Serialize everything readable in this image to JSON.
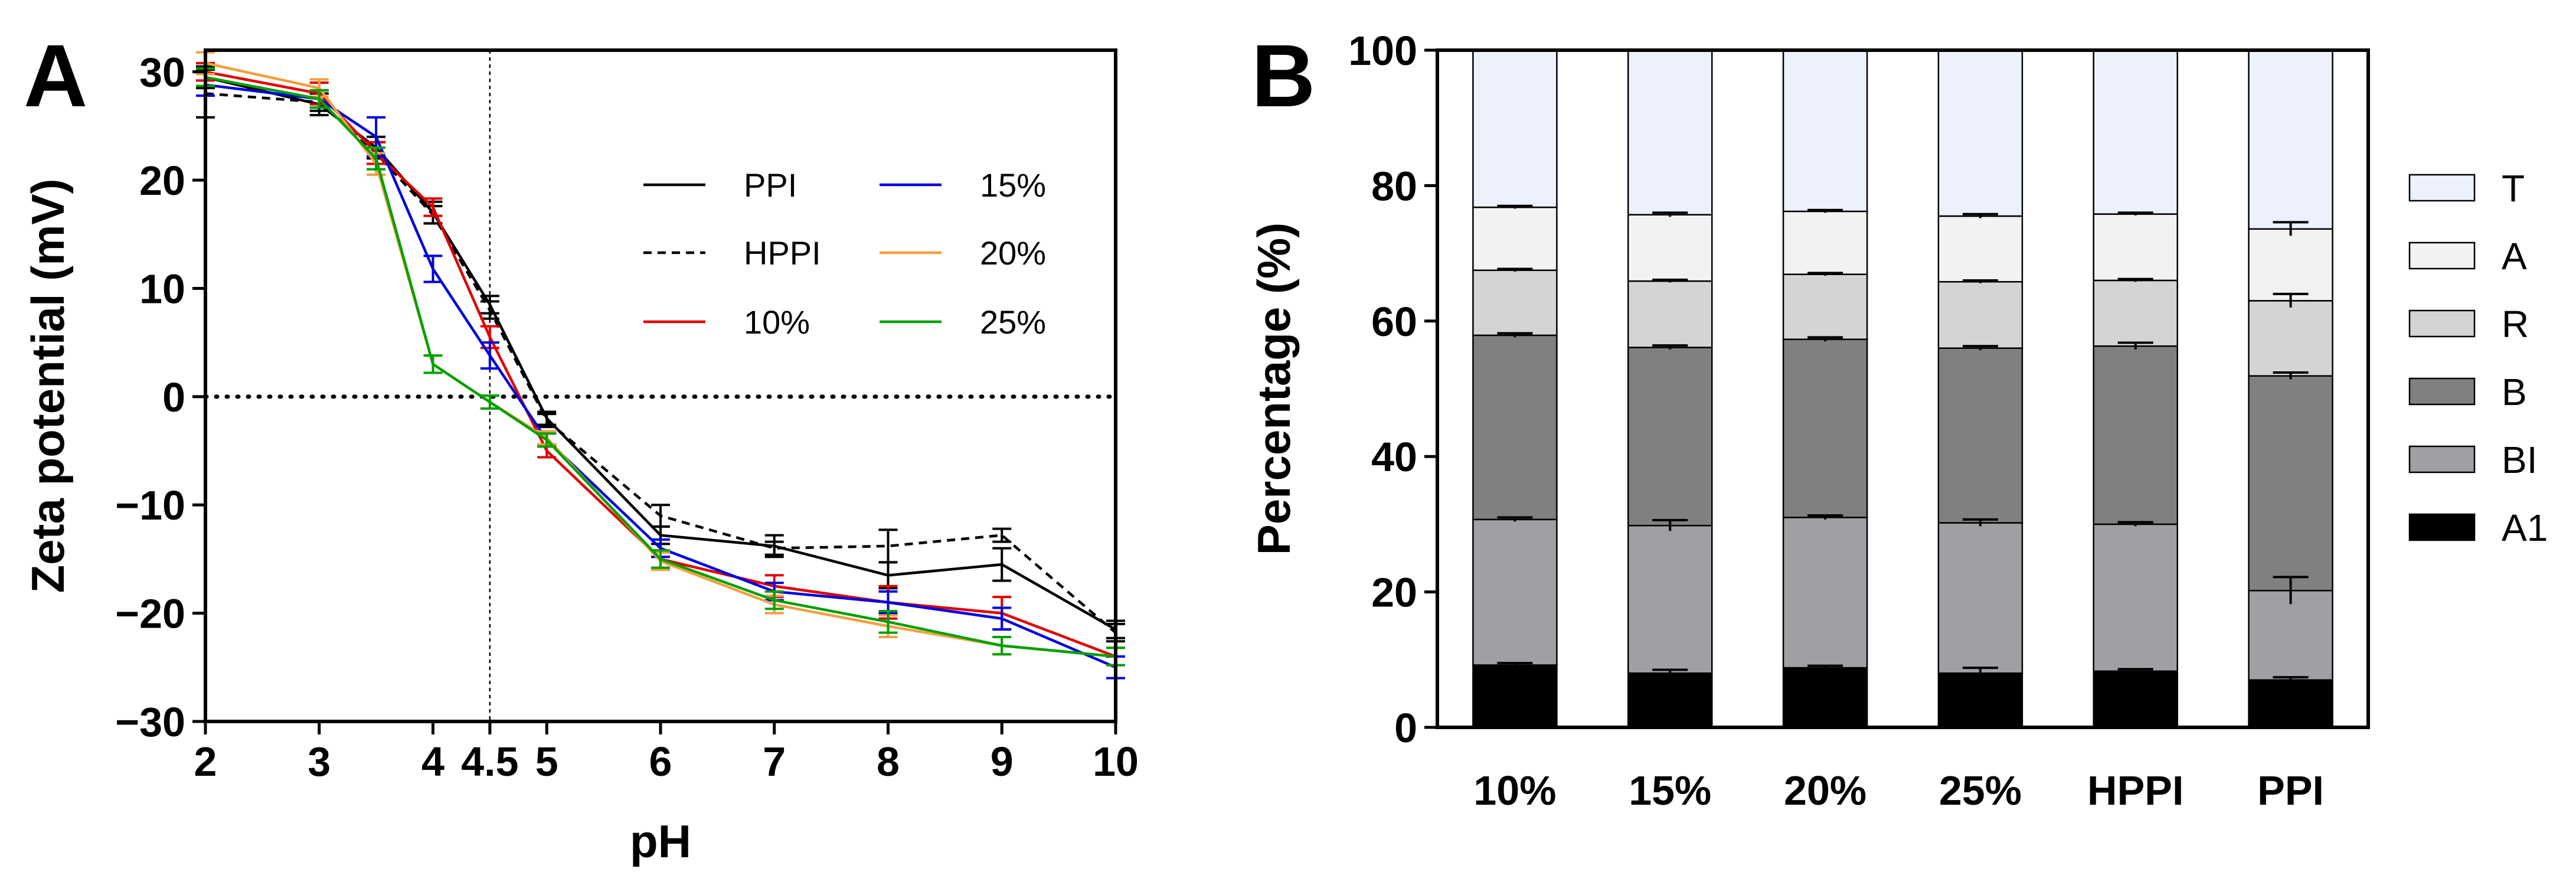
{
  "panels": {
    "a_label": "A",
    "b_label": "B"
  },
  "chart_data": [
    {
      "type": "line",
      "panel": "A",
      "xlabel": "pH",
      "ylabel": "Zeta potential (mV)",
      "xlim": [
        2,
        10
      ],
      "ylim": [
        -30,
        32
      ],
      "xticks": [
        2,
        3,
        4,
        4.5,
        5,
        6,
        7,
        8,
        9,
        10
      ],
      "xtick_labels": [
        "2",
        "3",
        "4",
        "4.5",
        "5",
        "6",
        "7",
        "8",
        "9",
        "10"
      ],
      "yticks": [
        30,
        20,
        10,
        0,
        -10,
        -20,
        -30
      ],
      "ytick_labels": [
        "30",
        "20",
        "10",
        "0",
        "−10",
        "−20",
        "−30"
      ],
      "x": [
        2,
        3,
        3.5,
        4,
        4.5,
        5,
        6,
        7,
        8,
        9,
        10
      ],
      "zero_line": true,
      "vline_at": 4.5,
      "series": [
        {
          "name": "PPI",
          "color": "#000000",
          "dash": false,
          "values": [
            29.5,
            27.0,
            23.0,
            17.0,
            8.5,
            -2.0,
            -12.8,
            -13.8,
            -16.5,
            -15.5,
            -21.5
          ],
          "errors": [
            1.0,
            1.0,
            1.0,
            1.0,
            0.8,
            0.6,
            0.8,
            1.0,
            1.2,
            1.5,
            0.8
          ]
        },
        {
          "name": "HPPI",
          "color": "#000000",
          "dash": true,
          "values": [
            28.0,
            27.2,
            22.5,
            16.8,
            8.0,
            -2.2,
            -11.0,
            -14.0,
            -13.8,
            -12.8,
            -21.8
          ],
          "errors": [
            2.2,
            0.8,
            1.0,
            0.8,
            0.8,
            0.6,
            1.0,
            0.6,
            1.5,
            0.6,
            0.8
          ]
        },
        {
          "name": "10%",
          "color": "#e00000",
          "dash": false,
          "values": [
            30.0,
            28.0,
            22.5,
            17.5,
            5.5,
            -5.0,
            -15.0,
            -17.5,
            -19.0,
            -20.0,
            -24.0
          ],
          "errors": [
            0.8,
            1.0,
            1.0,
            0.8,
            1.0,
            0.6,
            0.8,
            1.0,
            1.5,
            1.5,
            0.8
          ]
        },
        {
          "name": "15%",
          "color": "#0000e0",
          "dash": false,
          "values": [
            28.8,
            27.5,
            24.0,
            11.8,
            3.8,
            -4.0,
            -14.0,
            -18.0,
            -19.0,
            -20.5,
            -25.0
          ],
          "errors": [
            1.0,
            0.8,
            1.8,
            1.2,
            1.2,
            0.6,
            0.8,
            0.8,
            1.0,
            1.0,
            1.0
          ]
        },
        {
          "name": "20%",
          "color": "#f0a040",
          "dash": false,
          "values": [
            30.8,
            28.5,
            21.5,
            3.0,
            -0.5,
            -3.8,
            -15.2,
            -19.2,
            -21.2,
            -23.0,
            -24.0
          ],
          "errors": [
            1.0,
            0.8,
            1.0,
            0.8,
            0.6,
            0.6,
            0.8,
            0.8,
            1.0,
            0.8,
            0.8
          ]
        },
        {
          "name": "25%",
          "color": "#00a000",
          "dash": false,
          "values": [
            29.5,
            27.5,
            22.0,
            3.0,
            -0.5,
            -4.0,
            -15.0,
            -18.8,
            -20.8,
            -23.0,
            -24.0
          ],
          "errors": [
            0.8,
            0.8,
            1.0,
            0.8,
            0.6,
            0.6,
            0.8,
            0.8,
            1.0,
            0.8,
            0.8
          ]
        }
      ]
    },
    {
      "type": "bar",
      "stacked": true,
      "panel": "B",
      "xlabel": "",
      "ylabel": "Percentage (%)",
      "ylim": [
        0,
        100
      ],
      "yticks": [
        0,
        20,
        40,
        60,
        80,
        100
      ],
      "categories": [
        "10%",
        "15%",
        "20%",
        "25%",
        "HPPI",
        "PPI"
      ],
      "series": [
        {
          "name": "A1",
          "color": "#000000",
          "values": [
            9.2,
            8.0,
            8.8,
            8.0,
            8.3,
            7.0
          ],
          "errors": [
            0.3,
            0.5,
            0.3,
            0.8,
            0.3,
            0.4
          ]
        },
        {
          "name": "BI",
          "color": "#a0a0a4",
          "values": [
            21.5,
            21.8,
            22.2,
            22.2,
            21.7,
            13.2
          ],
          "errors": [
            0.3,
            0.8,
            0.3,
            0.5,
            0.3,
            2.0
          ]
        },
        {
          "name": "B",
          "color": "#808080",
          "values": [
            27.2,
            26.3,
            26.3,
            25.8,
            26.3,
            31.7
          ],
          "errors": [
            0.3,
            0.3,
            0.3,
            0.3,
            0.5,
            0.5
          ]
        },
        {
          "name": "R",
          "color": "#d4d4d4",
          "values": [
            9.6,
            9.8,
            9.6,
            9.8,
            9.7,
            11.1
          ],
          "errors": [
            0.2,
            0.2,
            0.2,
            0.2,
            0.2,
            1.0
          ]
        },
        {
          "name": "A",
          "color": "#f2f2f2",
          "values": [
            9.3,
            9.8,
            9.3,
            9.7,
            9.8,
            10.6
          ],
          "errors": [
            0.2,
            0.3,
            0.2,
            0.3,
            0.2,
            1.0
          ]
        },
        {
          "name": "T",
          "color": "#ecf1fb",
          "values": [
            23.2,
            24.3,
            23.8,
            24.5,
            24.2,
            26.4
          ],
          "errors": [
            0,
            0,
            0,
            0,
            0,
            0
          ]
        }
      ],
      "legend_order": [
        "T",
        "A",
        "R",
        "B",
        "BI",
        "A1"
      ]
    }
  ]
}
